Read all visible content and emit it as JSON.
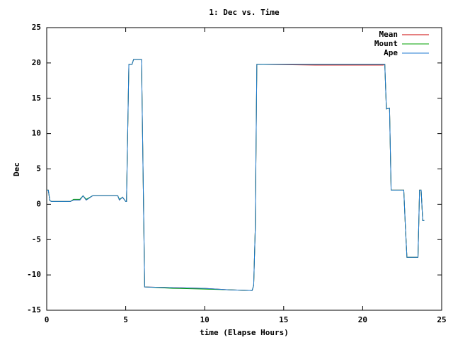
{
  "chart_data": {
    "type": "line",
    "title": "1: Dec vs. Time",
    "x_label": "time (Elapse Hours)",
    "y_label": "Dec",
    "x": [
      0,
      0.1,
      0.2,
      0.3,
      1.5,
      1.7,
      2.1,
      2.3,
      2.5,
      2.9,
      4.5,
      4.6,
      4.8,
      5.0,
      5.05,
      5.2,
      5.4,
      5.5,
      6.0,
      6.1,
      6.2,
      8.0,
      10.0,
      11.5,
      13.0,
      13.1,
      13.2,
      13.3,
      17.0,
      21.3,
      21.4,
      21.5,
      21.7,
      21.8,
      22.6,
      22.7,
      22.8,
      23.5,
      23.6,
      23.7,
      23.8,
      23.9
    ],
    "series": [
      {
        "name": "Mean",
        "color": "#cc0000",
        "values": [
          2,
          2,
          0.5,
          0.4,
          0.4,
          0.6,
          0.6,
          1.2,
          0.6,
          1.2,
          1.2,
          0.6,
          1,
          0.4,
          0.4,
          19.8,
          19.8,
          20.5,
          20.5,
          4.5,
          -11.7,
          -11.8,
          -11.9,
          -12.1,
          -12.2,
          -11.5,
          -3.5,
          19.8,
          19.7,
          19.7,
          19.8,
          13.5,
          13.6,
          2,
          2,
          -3,
          -7.5,
          -7.5,
          2,
          2,
          -2.3,
          -2.3
        ]
      },
      {
        "name": "Mount",
        "color": "#00a000",
        "values": [
          2,
          2,
          0.5,
          0.4,
          0.4,
          0.7,
          0.7,
          1.2,
          0.7,
          1.2,
          1.2,
          0.7,
          1,
          0.4,
          0.4,
          19.8,
          19.8,
          20.5,
          20.5,
          4.5,
          -11.7,
          -11.9,
          -12.0,
          -12.1,
          -12.2,
          -11.5,
          -3.5,
          19.8,
          19.8,
          19.8,
          19.8,
          13.5,
          13.6,
          2,
          2,
          -3,
          -7.5,
          -7.5,
          2,
          2,
          -2.3,
          -2.3
        ]
      },
      {
        "name": "Ape",
        "color": "#1f78d0",
        "values": [
          2,
          2,
          0.5,
          0.4,
          0.4,
          0.6,
          0.6,
          1.2,
          0.6,
          1.2,
          1.2,
          0.6,
          1,
          0.4,
          0.4,
          19.8,
          19.8,
          20.5,
          20.5,
          4.5,
          -11.7,
          -11.8,
          -11.9,
          -12.1,
          -12.2,
          -11.5,
          -3.5,
          19.8,
          19.8,
          19.8,
          19.8,
          13.5,
          13.6,
          2,
          2,
          -3,
          -7.5,
          -7.5,
          2,
          2,
          -2.3,
          -2.3
        ]
      }
    ],
    "xlim": [
      0,
      25
    ],
    "xticks": [
      0,
      5,
      10,
      15,
      20,
      25
    ],
    "ylim": [
      -15,
      25
    ],
    "yticks": [
      -15,
      -10,
      -5,
      0,
      5,
      10,
      15,
      20,
      25
    ],
    "legend": "top-right"
  }
}
